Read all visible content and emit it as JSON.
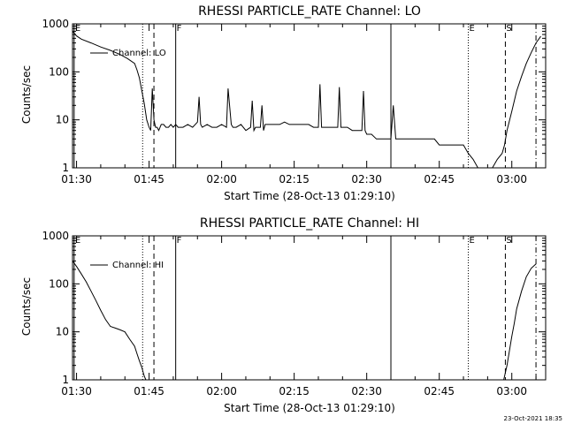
{
  "panels": [
    {
      "title": "RHESSI PARTICLE_RATE Channel: LO",
      "ylabel": "Counts/sec",
      "xlabel": "Start Time (28-Oct-13 01:29:10)",
      "legend": "Channel: LO"
    },
    {
      "title": "RHESSI PARTICLE_RATE Channel: HI",
      "ylabel": "Counts/sec",
      "xlabel": "Start Time (28-Oct-13 01:29:10)",
      "legend": "Channel: HI"
    }
  ],
  "footer": {
    "timestamp": "23-Oct-2021 18:35"
  },
  "chart_data": [
    {
      "type": "line",
      "title": "RHESSI PARTICLE_RATE Channel: LO",
      "xlabel": "Start Time (28-Oct-13 01:29:10)",
      "ylabel": "Counts/sec",
      "x_ticks": [
        "01:30",
        "01:45",
        "02:00",
        "02:15",
        "02:30",
        "02:45",
        "03:00"
      ],
      "y_ticks": [
        "1",
        "10",
        "100",
        "1000"
      ],
      "xlim": [
        "01:29:10",
        "03:07:00"
      ],
      "ylim": [
        1,
        1000
      ],
      "yscale": "log",
      "legend_position": "top-left",
      "series": [
        {
          "name": "Channel: LO",
          "x": [
            "01:29:10",
            "01:30:00",
            "01:31:00",
            "01:33:00",
            "01:35:00",
            "01:37:00",
            "01:39:00",
            "01:40:30",
            "01:42:00",
            "01:42:30",
            "01:43:00",
            "01:43:30",
            "01:44:00",
            "01:44:30",
            "01:45:00",
            "01:45:20",
            "01:45:40",
            "01:46:00",
            "01:46:20",
            "01:46:40",
            "01:47:00",
            "01:47:30",
            "01:48:00",
            "01:48:30",
            "01:49:00",
            "01:49:30",
            "01:50:00",
            "01:50:30",
            "01:51:00",
            "01:52:00",
            "01:53:00",
            "01:54:00",
            "01:55:00",
            "01:55:20",
            "01:55:40",
            "01:56:00",
            "01:57:00",
            "01:58:00",
            "01:59:00",
            "02:00:00",
            "02:01:00",
            "02:01:20",
            "02:02:00",
            "02:02:20",
            "02:03:00",
            "02:04:00",
            "02:05:00",
            "02:06:00",
            "02:06:20",
            "02:06:40",
            "02:07:00",
            "02:08:00",
            "02:08:20",
            "02:08:40",
            "02:09:00",
            "02:10:00",
            "02:11:00",
            "02:12:00",
            "02:13:00",
            "02:14:00",
            "02:15:00",
            "02:16:00",
            "02:17:00",
            "02:18:00",
            "02:19:00",
            "02:20:00",
            "02:20:20",
            "02:20:40",
            "02:21:00",
            "02:22:00",
            "02:23:00",
            "02:24:00",
            "02:24:20",
            "02:24:40",
            "02:25:00",
            "02:26:00",
            "02:27:00",
            "02:28:00",
            "02:29:00",
            "02:29:20",
            "02:29:40",
            "02:30:00",
            "02:31:00",
            "02:32:00",
            "02:33:00",
            "02:34:00",
            "02:35:00",
            "02:35:30",
            "02:36:00",
            "02:38:00",
            "02:40:00",
            "02:42:00",
            "02:44:00",
            "02:45:00",
            "02:46:00",
            "02:47:00",
            "02:48:00",
            "02:49:00",
            "02:50:00",
            "02:51:00",
            "02:52:00",
            "02:53:00",
            "02:54:00",
            "02:55:00",
            "02:56:00",
            "02:57:00",
            "02:58:00",
            "02:58:30",
            "02:59:00",
            "03:00:00",
            "03:01:00",
            "03:02:00",
            "03:03:00",
            "03:04:00",
            "03:05:00",
            "03:06:00"
          ],
          "y": [
            700,
            560,
            480,
            400,
            330,
            280,
            230,
            190,
            150,
            110,
            75,
            40,
            22,
            10,
            7,
            6,
            45,
            10,
            7,
            7,
            6,
            8,
            8,
            7,
            7,
            8,
            7,
            8,
            7,
            7,
            8,
            7,
            9,
            30,
            8,
            7,
            8,
            7,
            7,
            8,
            7,
            45,
            8,
            7,
            7,
            8,
            6,
            7,
            25,
            6,
            7,
            7,
            20,
            6,
            8,
            8,
            8,
            8,
            9,
            8,
            8,
            8,
            8,
            8,
            7,
            7,
            55,
            7,
            7,
            7,
            7,
            7,
            48,
            7,
            7,
            7,
            6,
            6,
            6,
            40,
            6,
            5,
            5,
            4,
            4,
            4,
            4,
            20,
            4,
            4,
            4,
            4,
            4,
            3,
            3,
            3,
            3,
            3,
            3,
            2,
            1.5,
            1,
            1,
            1,
            1,
            1.5,
            2,
            3,
            6,
            15,
            40,
            80,
            150,
            250,
            400,
            550
          ],
          "vlines": [
            {
              "label": "E",
              "x": "01:29:30",
              "style": "solid"
            },
            {
              "label": "",
              "x": "01:43:40",
              "style": "dotted"
            },
            {
              "label": "",
              "x": "01:46:00",
              "style": "dashed"
            },
            {
              "label": "F",
              "x": "01:50:30",
              "style": "solid"
            },
            {
              "label": "",
              "x": "02:35:00",
              "style": "solid"
            },
            {
              "label": "E",
              "x": "02:51:00",
              "style": "dotted"
            },
            {
              "label": "S",
              "x": "02:58:40",
              "style": "dashed"
            },
            {
              "label": "",
              "x": "03:05:00",
              "style": "dashdot"
            }
          ]
        }
      ]
    },
    {
      "type": "line",
      "title": "RHESSI PARTICLE_RATE Channel: HI",
      "xlabel": "Start Time (28-Oct-13 01:29:10)",
      "ylabel": "Counts/sec",
      "x_ticks": [
        "01:30",
        "01:45",
        "02:00",
        "02:15",
        "02:30",
        "02:45",
        "03:00"
      ],
      "y_ticks": [
        "1",
        "10",
        "100",
        "1000"
      ],
      "xlim": [
        "01:29:10",
        "03:07:00"
      ],
      "ylim": [
        1,
        1000
      ],
      "yscale": "log",
      "legend_position": "top-left",
      "series": [
        {
          "name": "Channel: HI",
          "x": [
            "01:29:10",
            "01:30:00",
            "01:31:00",
            "01:32:00",
            "01:33:00",
            "01:34:00",
            "01:35:00",
            "01:36:00",
            "01:37:00",
            "01:38:00",
            "01:39:00",
            "01:40:00",
            "01:41:00",
            "01:42:00",
            "01:42:30",
            "01:43:00",
            "01:43:30",
            "01:44:00",
            "01:44:20",
            "02:58:20",
            "02:59:00",
            "02:59:30",
            "03:00:00",
            "03:00:30",
            "03:01:00",
            "03:02:00",
            "03:03:00",
            "03:04:00",
            "03:05:00"
          ],
          "y": [
            300,
            230,
            160,
            110,
            70,
            45,
            28,
            18,
            13,
            12,
            11,
            10,
            7,
            5,
            3.5,
            2.5,
            1.8,
            1.2,
            1,
            1,
            2,
            4,
            8,
            15,
            30,
            70,
            140,
            210,
            260
          ],
          "vlines": [
            {
              "label": "E",
              "x": "01:29:30",
              "style": "solid"
            },
            {
              "label": "",
              "x": "01:43:40",
              "style": "dotted"
            },
            {
              "label": "",
              "x": "01:46:00",
              "style": "dashed"
            },
            {
              "label": "F",
              "x": "01:50:30",
              "style": "solid"
            },
            {
              "label": "",
              "x": "02:35:00",
              "style": "solid"
            },
            {
              "label": "E",
              "x": "02:51:00",
              "style": "dotted"
            },
            {
              "label": "S",
              "x": "02:58:40",
              "style": "dashed"
            },
            {
              "label": "",
              "x": "03:05:00",
              "style": "dashdot"
            }
          ]
        }
      ]
    }
  ]
}
